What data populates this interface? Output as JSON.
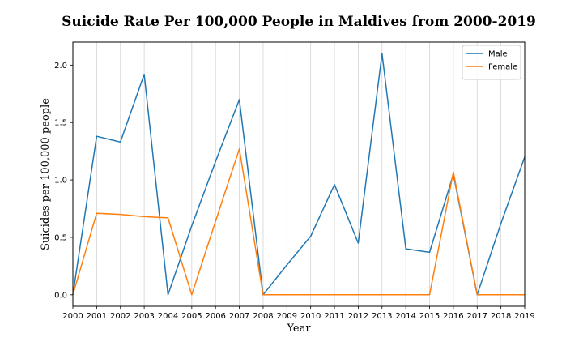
{
  "chart_data": {
    "type": "line",
    "title": "Suicide Rate Per 100,000 People in Maldives from 2000-2019",
    "xlabel": "Year",
    "ylabel": "Suicides per 100,000 people",
    "x": [
      2000,
      2001,
      2002,
      2003,
      2004,
      2005,
      2006,
      2007,
      2008,
      2009,
      2010,
      2011,
      2012,
      2013,
      2014,
      2015,
      2016,
      2017,
      2018,
      2019
    ],
    "x_tick_labels": [
      "2000",
      "2001",
      "2002",
      "2003",
      "2004",
      "2005",
      "2006",
      "2007",
      "2008",
      "2009",
      "2010",
      "2011",
      "2012",
      "2013",
      "2014",
      "2015",
      "2016",
      "2017",
      "2018",
      "2019"
    ],
    "xlim": [
      2000,
      2019
    ],
    "ylim": [
      -0.1,
      2.2
    ],
    "y_ticks": [
      0.0,
      0.5,
      1.0,
      1.5,
      2.0
    ],
    "y_tick_labels": [
      "0.0",
      "0.5",
      "1.0",
      "1.5",
      "2.0"
    ],
    "grid": "vertical",
    "legend_position": "top-right",
    "series": [
      {
        "name": "Male",
        "color": "#1f77b4",
        "values": [
          0.0,
          1.38,
          1.33,
          1.92,
          0.0,
          0.6,
          1.16,
          1.7,
          0.0,
          0.26,
          0.51,
          0.96,
          0.45,
          2.1,
          0.4,
          0.37,
          1.05,
          0.0,
          0.62,
          1.2
        ]
      },
      {
        "name": "Female",
        "color": "#ff7f0e",
        "values": [
          0.0,
          0.71,
          0.7,
          0.68,
          0.67,
          0.0,
          0.64,
          1.27,
          0.0,
          0.0,
          0.0,
          0.0,
          0.0,
          0.0,
          0.0,
          0.0,
          1.07,
          0.0,
          0.0,
          0.0
        ]
      }
    ]
  }
}
